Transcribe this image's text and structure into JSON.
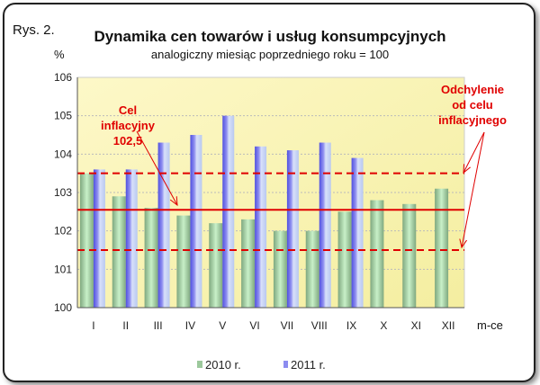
{
  "chart_data": {
    "type": "bar",
    "figure_label": "Rys. 2.",
    "title": "Dynamika cen towarów i usług konsumpcyjnych",
    "subtitle": "analogiczny miesiąc poprzedniego roku = 100",
    "ylabel": "%",
    "xlabel": "m-ce",
    "ylim": [
      100,
      106
    ],
    "yticks": [
      100,
      101,
      102,
      103,
      104,
      105,
      106
    ],
    "grid": true,
    "categories": [
      "I",
      "II",
      "III",
      "IV",
      "V",
      "VI",
      "VII",
      "VIII",
      "IX",
      "X",
      "XI",
      "XII"
    ],
    "series": [
      {
        "name": "2010 r.",
        "color": "#9cc89c",
        "values": [
          103.5,
          102.9,
          102.6,
          102.4,
          102.2,
          102.3,
          102.0,
          102.0,
          102.5,
          102.8,
          102.7,
          103.1
        ]
      },
      {
        "name": "2011 r.",
        "color": "#7878e8",
        "values": [
          103.6,
          103.6,
          104.3,
          104.5,
          105.0,
          104.2,
          104.1,
          104.3,
          103.9,
          null,
          null,
          null
        ]
      }
    ],
    "reference_lines": {
      "target": 102.5,
      "target_line_value": 102.55,
      "upper": 103.5,
      "lower": 101.5,
      "color": "#e00000"
    },
    "annotations": {
      "target_label": [
        "Cel",
        "inflacyjny",
        "102,5"
      ],
      "deviation_label": [
        "Odchylenie",
        "od celu",
        "inflacyjnego"
      ]
    },
    "legend_position": "bottom"
  }
}
